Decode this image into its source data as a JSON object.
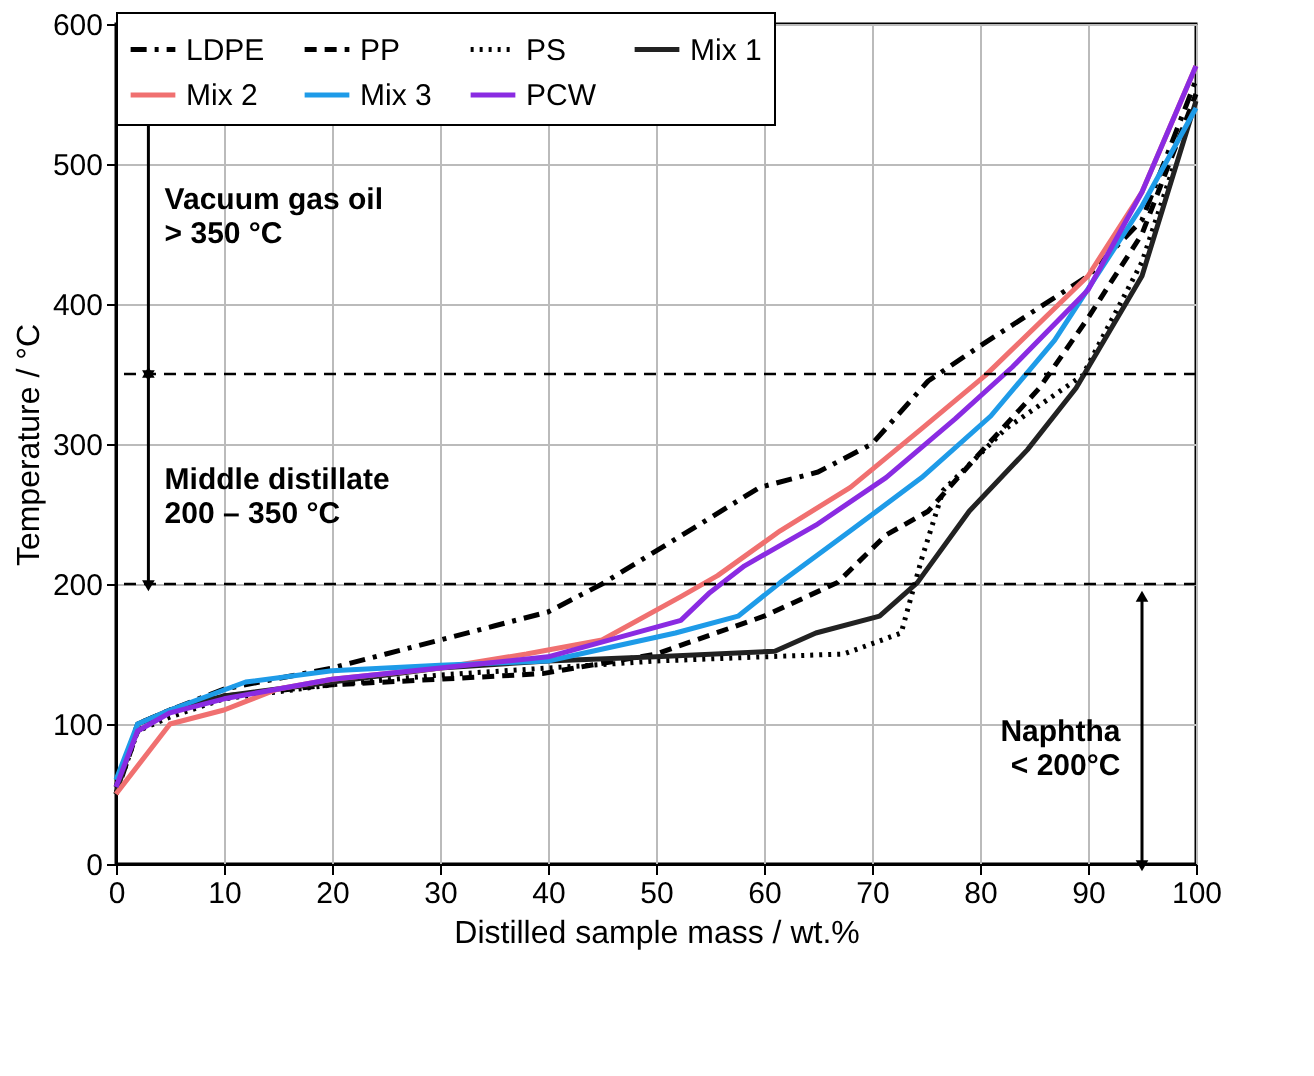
{
  "chart_data": {
    "type": "line",
    "xlabel": "Distilled sample mass / wt.%",
    "ylabel": "Temperature / °C",
    "xlim": [
      0,
      100
    ],
    "xticks": [
      0,
      10,
      20,
      30,
      40,
      50,
      60,
      70,
      80,
      90,
      100
    ],
    "ylim": [
      0,
      600
    ],
    "yticks": [
      0,
      100,
      200,
      300,
      400,
      500,
      600
    ],
    "grid": true,
    "legend": "top",
    "series": [
      {
        "name": "LDPE",
        "color": "#000000",
        "line_style": "dashdot",
        "x": [
          0,
          2,
          5,
          10,
          20,
          25,
          30,
          35,
          40,
          45,
          51.8,
          59.6,
          65,
          70,
          75.2,
          80,
          85,
          90,
          95,
          100
        ],
        "values": [
          55,
          100,
          110,
          125,
          140,
          150,
          160,
          170,
          180,
          200,
          232,
          269,
          280,
          300,
          345,
          370,
          395,
          420,
          460,
          560
        ]
      },
      {
        "name": "PP",
        "color": "#000000",
        "line_style": "dashed",
        "x": [
          0,
          2,
          5,
          10,
          20,
          30,
          39.5,
          50,
          60,
          66.8,
          71.3,
          75.2,
          79.7,
          85.5,
          90,
          95,
          100
        ],
        "values": [
          50,
          95,
          110,
          120,
          128,
          132,
          136,
          150,
          177,
          201,
          235,
          252,
          291,
          340,
          390,
          450,
          550
        ]
      },
      {
        "name": "PS",
        "color": "#000000",
        "line_style": "dotted",
        "x": [
          0,
          2,
          5,
          10,
          20,
          30,
          40,
          50,
          60,
          67.4,
          72.7,
          74.6,
          76.6,
          82.4,
          89.5,
          95,
          98
        ],
        "values": [
          50,
          95,
          105,
          118,
          128,
          135,
          140,
          145,
          148,
          150,
          165,
          218,
          267,
          311,
          349,
          430,
          500
        ]
      },
      {
        "name": "Mix 1",
        "color": "#222222",
        "line_style": "solid",
        "x": [
          0,
          2,
          5,
          10,
          20,
          30,
          40,
          50,
          61,
          64.8,
          70.7,
          74.2,
          79,
          84.4,
          88.9,
          95,
          100
        ],
        "values": [
          50,
          100,
          110,
          120,
          130,
          140,
          145,
          148,
          152,
          165,
          177,
          201,
          252,
          296,
          340,
          420,
          545
        ]
      },
      {
        "name": "Mix 2",
        "color": "#f07070",
        "line_style": "solid",
        "x": [
          0,
          3,
          5,
          10,
          15,
          20,
          30,
          38,
          45,
          52.3,
          55.7,
          61.5,
          68,
          74.6,
          80.5,
          90,
          95,
          100
        ],
        "values": [
          50,
          80,
          100,
          110,
          125,
          132,
          140,
          150,
          160,
          191,
          206,
          238,
          269,
          311,
          349,
          420,
          480,
          570
        ]
      },
      {
        "name": "Mix 3",
        "color": "#1e9be8",
        "line_style": "solid",
        "x": [
          0,
          2,
          5,
          12,
          20,
          30,
          40,
          51.8,
          57.6,
          61.5,
          68,
          74.6,
          81,
          86.9,
          95,
          100
        ],
        "values": [
          60,
          100,
          110,
          130,
          138,
          142,
          145,
          165,
          177,
          201,
          238,
          276,
          320,
          374,
          470,
          540
        ]
      },
      {
        "name": "PCW",
        "color": "#8a2be2",
        "line_style": "solid",
        "x": [
          0,
          2,
          5,
          10,
          20,
          30,
          40,
          52.3,
          55,
          58.2,
          64.8,
          71.3,
          77.7,
          83,
          90,
          95,
          100
        ],
        "values": [
          55,
          95,
          108,
          118,
          132,
          140,
          148,
          174,
          194,
          213,
          242,
          276,
          318,
          355,
          410,
          480,
          570
        ]
      }
    ],
    "ref_lines": [
      {
        "axis": "y",
        "value": 350,
        "line_style": "dashed",
        "color": "#000000"
      },
      {
        "axis": "y",
        "value": 200,
        "line_style": "dashed",
        "color": "#000000"
      }
    ],
    "annotations": [
      "Vacuum gas oil\n> 350 °C",
      "Middle distillate\n200 – 350 °C",
      "Naphtha\n< 200°C"
    ]
  }
}
